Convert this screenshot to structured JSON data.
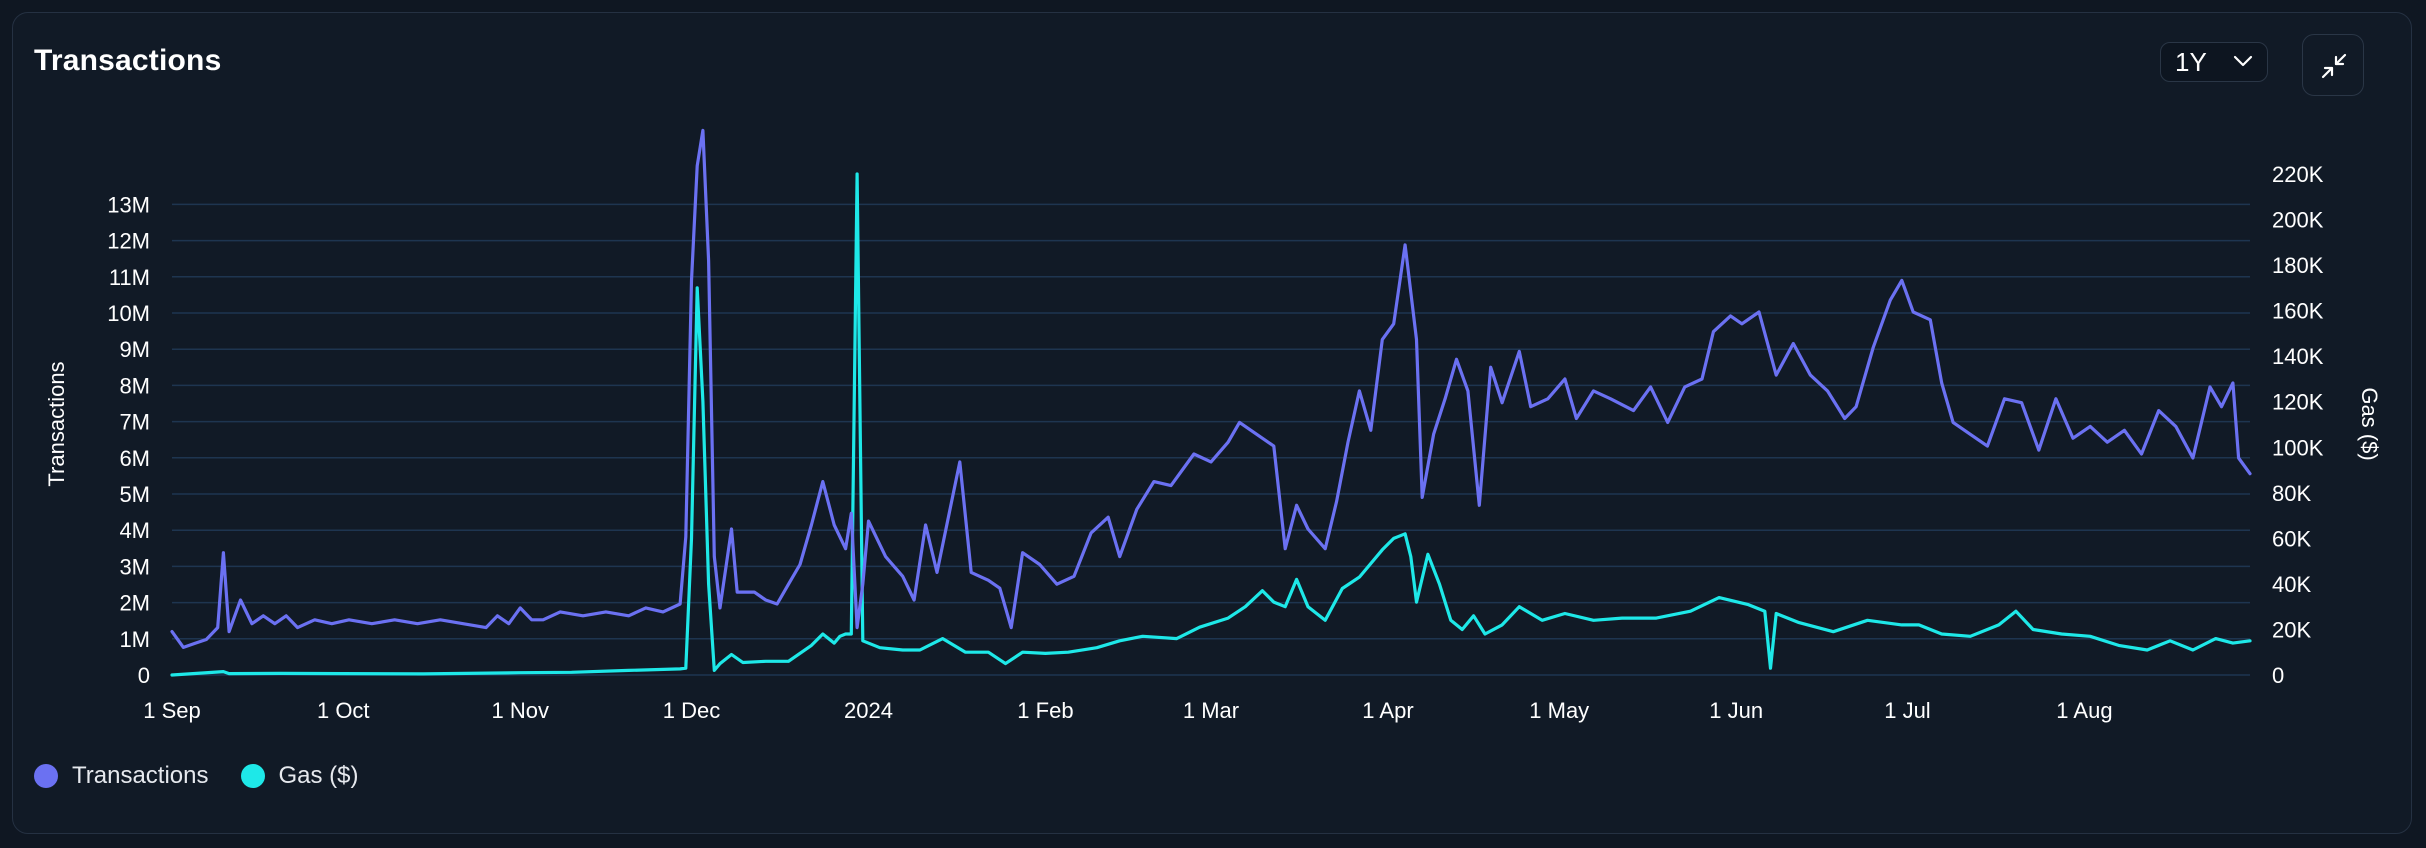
{
  "header": {
    "title": "Transactions",
    "range_value": "1Y"
  },
  "colors": {
    "transactions": "#6b71f2",
    "gas": "#1ee8e8",
    "grid": "#1e3550",
    "axis_text": "#ffffff"
  },
  "icons": {
    "range_chevron": "chevron-down-icon",
    "collapse": "collapse-arrows-icon"
  },
  "legend": [
    {
      "label": "Transactions",
      "color": "#6b71f2"
    },
    {
      "label": "Gas ($)",
      "color": "#1ee8e8"
    }
  ],
  "chart_data": {
    "type": "line",
    "title": "Transactions",
    "ylabel": "Transactions",
    "y2label": "Gas ($)",
    "ylim": [
      0,
      14000000
    ],
    "y2lim": [
      0,
      220000
    ],
    "yticks": [
      "0",
      "1M",
      "2M",
      "3M",
      "4M",
      "5M",
      "6M",
      "7M",
      "8M",
      "9M",
      "10M",
      "11M",
      "12M",
      "13M"
    ],
    "y2ticks": [
      "0",
      "20K",
      "40K",
      "60K",
      "80K",
      "100K",
      "120K",
      "140K",
      "160K",
      "180K",
      "200K",
      "220K"
    ],
    "xlim": [
      "2023-09-01",
      "2024-08-30"
    ],
    "xticks": [
      {
        "label": "1 Sep",
        "date": "2023-09-01"
      },
      {
        "label": "1 Oct",
        "date": "2023-10-01"
      },
      {
        "label": "1 Nov",
        "date": "2023-11-01"
      },
      {
        "label": "1 Dec",
        "date": "2023-12-01"
      },
      {
        "label": "2024",
        "date": "2024-01-01"
      },
      {
        "label": "1 Feb",
        "date": "2024-02-01"
      },
      {
        "label": "1 Mar",
        "date": "2024-03-01"
      },
      {
        "label": "1 Apr",
        "date": "2024-04-01"
      },
      {
        "label": "1 May",
        "date": "2024-05-01"
      },
      {
        "label": "1 Jun",
        "date": "2024-06-01"
      },
      {
        "label": "1 Jul",
        "date": "2024-07-01"
      },
      {
        "label": "1 Aug",
        "date": "2024-08-01"
      }
    ],
    "grid": true,
    "legend_position": "bottom-left",
    "series": [
      {
        "name": "Transactions",
        "axis": "left",
        "points": [
          [
            "2023-09-01",
            1100000
          ],
          [
            "2023-09-03",
            700000
          ],
          [
            "2023-09-05",
            800000
          ],
          [
            "2023-09-07",
            900000
          ],
          [
            "2023-09-09",
            1200000
          ],
          [
            "2023-09-10",
            3100000
          ],
          [
            "2023-09-11",
            1100000
          ],
          [
            "2023-09-13",
            1900000
          ],
          [
            "2023-09-15",
            1300000
          ],
          [
            "2023-09-17",
            1500000
          ],
          [
            "2023-09-19",
            1300000
          ],
          [
            "2023-09-21",
            1500000
          ],
          [
            "2023-09-23",
            1200000
          ],
          [
            "2023-09-26",
            1400000
          ],
          [
            "2023-09-29",
            1300000
          ],
          [
            "2023-10-02",
            1400000
          ],
          [
            "2023-10-06",
            1300000
          ],
          [
            "2023-10-10",
            1400000
          ],
          [
            "2023-10-14",
            1300000
          ],
          [
            "2023-10-18",
            1400000
          ],
          [
            "2023-10-22",
            1300000
          ],
          [
            "2023-10-26",
            1200000
          ],
          [
            "2023-10-28",
            1500000
          ],
          [
            "2023-10-30",
            1300000
          ],
          [
            "2023-11-01",
            1700000
          ],
          [
            "2023-11-03",
            1400000
          ],
          [
            "2023-11-05",
            1400000
          ],
          [
            "2023-11-08",
            1600000
          ],
          [
            "2023-11-12",
            1500000
          ],
          [
            "2023-11-16",
            1600000
          ],
          [
            "2023-11-20",
            1500000
          ],
          [
            "2023-11-23",
            1700000
          ],
          [
            "2023-11-26",
            1600000
          ],
          [
            "2023-11-29",
            1800000
          ],
          [
            "2023-11-30",
            3500000
          ],
          [
            "2023-12-01",
            10000000
          ],
          [
            "2023-12-02",
            12900000
          ],
          [
            "2023-12-03",
            13800000
          ],
          [
            "2023-12-04",
            10500000
          ],
          [
            "2023-12-05",
            3000000
          ],
          [
            "2023-12-06",
            1700000
          ],
          [
            "2023-12-08",
            3700000
          ],
          [
            "2023-12-09",
            2100000
          ],
          [
            "2023-12-12",
            2100000
          ],
          [
            "2023-12-14",
            1900000
          ],
          [
            "2023-12-16",
            1800000
          ],
          [
            "2023-12-18",
            2300000
          ],
          [
            "2023-12-20",
            2800000
          ],
          [
            "2023-12-22",
            3800000
          ],
          [
            "2023-12-24",
            4900000
          ],
          [
            "2023-12-26",
            3800000
          ],
          [
            "2023-12-28",
            3200000
          ],
          [
            "2023-12-29",
            4100000
          ],
          [
            "2023-12-30",
            1200000
          ],
          [
            "2023-12-31",
            2300000
          ],
          [
            "2024-01-01",
            3900000
          ],
          [
            "2024-01-04",
            3000000
          ],
          [
            "2024-01-07",
            2500000
          ],
          [
            "2024-01-09",
            1900000
          ],
          [
            "2024-01-11",
            3800000
          ],
          [
            "2024-01-13",
            2600000
          ],
          [
            "2024-01-17",
            5400000
          ],
          [
            "2024-01-19",
            2600000
          ],
          [
            "2024-01-22",
            2400000
          ],
          [
            "2024-01-24",
            2200000
          ],
          [
            "2024-01-26",
            1200000
          ],
          [
            "2024-01-28",
            3100000
          ],
          [
            "2024-01-31",
            2800000
          ],
          [
            "2024-02-03",
            2300000
          ],
          [
            "2024-02-06",
            2500000
          ],
          [
            "2024-02-09",
            3600000
          ],
          [
            "2024-02-12",
            4000000
          ],
          [
            "2024-02-14",
            3000000
          ],
          [
            "2024-02-17",
            4200000
          ],
          [
            "2024-02-20",
            4900000
          ],
          [
            "2024-02-23",
            4800000
          ],
          [
            "2024-02-27",
            5600000
          ],
          [
            "2024-03-01",
            5400000
          ],
          [
            "2024-03-04",
            5900000
          ],
          [
            "2024-03-06",
            6400000
          ],
          [
            "2024-03-09",
            6100000
          ],
          [
            "2024-03-12",
            5800000
          ],
          [
            "2024-03-14",
            3200000
          ],
          [
            "2024-03-16",
            4300000
          ],
          [
            "2024-03-18",
            3700000
          ],
          [
            "2024-03-21",
            3200000
          ],
          [
            "2024-03-23",
            4400000
          ],
          [
            "2024-03-25",
            5900000
          ],
          [
            "2024-03-27",
            7200000
          ],
          [
            "2024-03-29",
            6200000
          ],
          [
            "2024-03-31",
            8500000
          ],
          [
            "2024-04-02",
            8900000
          ],
          [
            "2024-04-04",
            10900000
          ],
          [
            "2024-04-06",
            8500000
          ],
          [
            "2024-04-07",
            4500000
          ],
          [
            "2024-04-09",
            6100000
          ],
          [
            "2024-04-11",
            7000000
          ],
          [
            "2024-04-13",
            8000000
          ],
          [
            "2024-04-15",
            7200000
          ],
          [
            "2024-04-17",
            4300000
          ],
          [
            "2024-04-19",
            7800000
          ],
          [
            "2024-04-21",
            6900000
          ],
          [
            "2024-04-24",
            8200000
          ],
          [
            "2024-04-26",
            6800000
          ],
          [
            "2024-04-29",
            7000000
          ],
          [
            "2024-05-02",
            7500000
          ],
          [
            "2024-05-04",
            6500000
          ],
          [
            "2024-05-07",
            7200000
          ],
          [
            "2024-05-10",
            7000000
          ],
          [
            "2024-05-14",
            6700000
          ],
          [
            "2024-05-17",
            7300000
          ],
          [
            "2024-05-20",
            6400000
          ],
          [
            "2024-05-23",
            7300000
          ],
          [
            "2024-05-26",
            7500000
          ],
          [
            "2024-05-28",
            8700000
          ],
          [
            "2024-05-31",
            9100000
          ],
          [
            "2024-06-02",
            8900000
          ],
          [
            "2024-06-05",
            9200000
          ],
          [
            "2024-06-08",
            7600000
          ],
          [
            "2024-06-11",
            8400000
          ],
          [
            "2024-06-14",
            7600000
          ],
          [
            "2024-06-17",
            7200000
          ],
          [
            "2024-06-20",
            6500000
          ],
          [
            "2024-06-22",
            6800000
          ],
          [
            "2024-06-25",
            8300000
          ],
          [
            "2024-06-28",
            9500000
          ],
          [
            "2024-06-30",
            10000000
          ],
          [
            "2024-07-02",
            9200000
          ],
          [
            "2024-07-05",
            9000000
          ],
          [
            "2024-07-07",
            7400000
          ],
          [
            "2024-07-09",
            6400000
          ],
          [
            "2024-07-12",
            6100000
          ],
          [
            "2024-07-15",
            5800000
          ],
          [
            "2024-07-18",
            7000000
          ],
          [
            "2024-07-21",
            6900000
          ],
          [
            "2024-07-24",
            5700000
          ],
          [
            "2024-07-27",
            7000000
          ],
          [
            "2024-07-30",
            6000000
          ],
          [
            "2024-08-02",
            6300000
          ],
          [
            "2024-08-05",
            5900000
          ],
          [
            "2024-08-08",
            6200000
          ],
          [
            "2024-08-11",
            5600000
          ],
          [
            "2024-08-14",
            6700000
          ],
          [
            "2024-08-17",
            6300000
          ],
          [
            "2024-08-20",
            5500000
          ],
          [
            "2024-08-23",
            7300000
          ],
          [
            "2024-08-25",
            6800000
          ],
          [
            "2024-08-27",
            7400000
          ],
          [
            "2024-08-28",
            5500000
          ],
          [
            "2024-08-30",
            5100000
          ]
        ]
      },
      {
        "name": "Gas ($)",
        "axis": "right",
        "points": [
          [
            "2023-09-01",
            0
          ],
          [
            "2023-09-10",
            1500
          ],
          [
            "2023-09-11",
            600
          ],
          [
            "2023-09-20",
            700
          ],
          [
            "2023-10-01",
            600
          ],
          [
            "2023-10-15",
            500
          ],
          [
            "2023-11-01",
            1000
          ],
          [
            "2023-11-10",
            1200
          ],
          [
            "2023-11-20",
            2000
          ],
          [
            "2023-11-29",
            2700
          ],
          [
            "2023-11-30",
            3000
          ],
          [
            "2023-12-01",
            60000
          ],
          [
            "2023-12-02",
            170000
          ],
          [
            "2023-12-03",
            120000
          ],
          [
            "2023-12-04",
            40000
          ],
          [
            "2023-12-05",
            2000
          ],
          [
            "2023-12-06",
            5000
          ],
          [
            "2023-12-08",
            9000
          ],
          [
            "2023-12-10",
            5500
          ],
          [
            "2023-12-14",
            6000
          ],
          [
            "2023-12-18",
            6000
          ],
          [
            "2023-12-22",
            13000
          ],
          [
            "2023-12-24",
            18000
          ],
          [
            "2023-12-26",
            14000
          ],
          [
            "2023-12-27",
            17000
          ],
          [
            "2023-12-28",
            18000
          ],
          [
            "2023-12-29",
            18000
          ],
          [
            "2023-12-30",
            220000
          ],
          [
            "2023-12-31",
            15000
          ],
          [
            "2024-01-03",
            12000
          ],
          [
            "2024-01-07",
            11000
          ],
          [
            "2024-01-10",
            11000
          ],
          [
            "2024-01-14",
            16000
          ],
          [
            "2024-01-18",
            10000
          ],
          [
            "2024-01-22",
            10000
          ],
          [
            "2024-01-25",
            5000
          ],
          [
            "2024-01-28",
            10000
          ],
          [
            "2024-02-01",
            9500
          ],
          [
            "2024-02-05",
            10000
          ],
          [
            "2024-02-10",
            12000
          ],
          [
            "2024-02-14",
            15000
          ],
          [
            "2024-02-18",
            17000
          ],
          [
            "2024-02-24",
            16000
          ],
          [
            "2024-02-28",
            21000
          ],
          [
            "2024-03-04",
            25000
          ],
          [
            "2024-03-07",
            30000
          ],
          [
            "2024-03-10",
            37000
          ],
          [
            "2024-03-12",
            32000
          ],
          [
            "2024-03-14",
            30000
          ],
          [
            "2024-03-16",
            42000
          ],
          [
            "2024-03-18",
            30000
          ],
          [
            "2024-03-21",
            24000
          ],
          [
            "2024-03-24",
            38000
          ],
          [
            "2024-03-27",
            43000
          ],
          [
            "2024-03-31",
            55000
          ],
          [
            "2024-04-02",
            60000
          ],
          [
            "2024-04-04",
            62000
          ],
          [
            "2024-04-05",
            52000
          ],
          [
            "2024-04-06",
            32000
          ],
          [
            "2024-04-08",
            53000
          ],
          [
            "2024-04-10",
            40000
          ],
          [
            "2024-04-12",
            24000
          ],
          [
            "2024-04-14",
            20000
          ],
          [
            "2024-04-16",
            26000
          ],
          [
            "2024-04-18",
            18000
          ],
          [
            "2024-04-21",
            22000
          ],
          [
            "2024-04-24",
            30000
          ],
          [
            "2024-04-28",
            24000
          ],
          [
            "2024-05-02",
            27000
          ],
          [
            "2024-05-07",
            24000
          ],
          [
            "2024-05-12",
            25000
          ],
          [
            "2024-05-18",
            25000
          ],
          [
            "2024-05-24",
            28000
          ],
          [
            "2024-05-29",
            34000
          ],
          [
            "2024-06-03",
            31000
          ],
          [
            "2024-06-06",
            28000
          ],
          [
            "2024-06-07",
            3000
          ],
          [
            "2024-06-08",
            27000
          ],
          [
            "2024-06-12",
            23000
          ],
          [
            "2024-06-18",
            19000
          ],
          [
            "2024-06-24",
            24000
          ],
          [
            "2024-06-30",
            22000
          ],
          [
            "2024-07-03",
            22000
          ],
          [
            "2024-07-07",
            18000
          ],
          [
            "2024-07-12",
            17000
          ],
          [
            "2024-07-17",
            22000
          ],
          [
            "2024-07-20",
            28000
          ],
          [
            "2024-07-23",
            20000
          ],
          [
            "2024-07-28",
            18000
          ],
          [
            "2024-08-02",
            17000
          ],
          [
            "2024-08-07",
            13000
          ],
          [
            "2024-08-12",
            11000
          ],
          [
            "2024-08-16",
            15000
          ],
          [
            "2024-08-20",
            11000
          ],
          [
            "2024-08-24",
            16000
          ],
          [
            "2024-08-27",
            14000
          ],
          [
            "2024-08-30",
            15000
          ]
        ]
      }
    ]
  }
}
